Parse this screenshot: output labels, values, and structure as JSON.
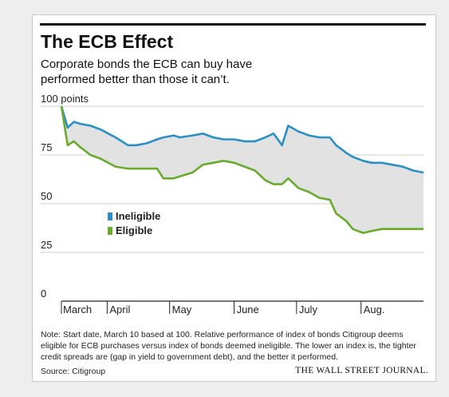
{
  "title": "The ECB Effect",
  "subtitle": "Corporate bonds the ECB can buy have performed better than those it can’t.",
  "note": "Note: Start date, March 10 based at 100. Relative performance of index of bonds Citigroup deems eligible for ECB purchases versus index of bonds deemed ineligible. The lower an index is, the tighter credit spreads are (gap in yield to government debt), and the better it performed.",
  "source": "Source: Citigroup",
  "brand": "THE WALL STREET JOURNAL.",
  "colors": {
    "ineligible": "#2a8fc4",
    "eligible": "#6aab2e",
    "gap_fill": "#e2e2e2",
    "grid": "#cfcfcf"
  },
  "chart_data": {
    "type": "line",
    "title": "The ECB Effect",
    "ylabel": "points",
    "y_ticks": [
      0,
      25,
      50,
      75,
      100
    ],
    "y_tick_labels": [
      "0",
      "25",
      "50",
      "75",
      "100 points"
    ],
    "ylim": [
      0,
      100
    ],
    "x_tick_labels": [
      "March",
      "April",
      "May",
      "June",
      "July",
      "Aug."
    ],
    "x_tick_dates": [
      "2016-03-10",
      "2016-04-01",
      "2016-05-01",
      "2016-06-01",
      "2016-07-01",
      "2016-08-01"
    ],
    "xlim": [
      "2016-03-10",
      "2016-08-31"
    ],
    "grid": true,
    "legend": "center-left",
    "shaded_gap_between_series": true,
    "x": [
      "2016-03-10",
      "2016-03-13",
      "2016-03-16",
      "2016-03-19",
      "2016-03-24",
      "2016-03-29",
      "2016-04-05",
      "2016-04-11",
      "2016-04-15",
      "2016-04-20",
      "2016-04-25",
      "2016-04-28",
      "2016-05-03",
      "2016-05-06",
      "2016-05-12",
      "2016-05-17",
      "2016-05-22",
      "2016-05-27",
      "2016-06-01",
      "2016-06-06",
      "2016-06-11",
      "2016-06-16",
      "2016-06-20",
      "2016-06-24",
      "2016-06-27",
      "2016-07-02",
      "2016-07-07",
      "2016-07-12",
      "2016-07-17",
      "2016-07-20",
      "2016-07-25",
      "2016-07-28",
      "2016-08-02",
      "2016-08-06",
      "2016-08-11",
      "2016-08-16",
      "2016-08-21",
      "2016-08-26",
      "2016-08-31"
    ],
    "series": [
      {
        "name": "Ineligible",
        "values": [
          100,
          89,
          92,
          91,
          90,
          88,
          84,
          80,
          80,
          81,
          83,
          84,
          85,
          84,
          85,
          86,
          84,
          83,
          83,
          82,
          82,
          84,
          86,
          80,
          90,
          87,
          85,
          84,
          84,
          80,
          76,
          74,
          72,
          71,
          71,
          70,
          69,
          67,
          66
        ]
      },
      {
        "name": "Eligible",
        "values": [
          100,
          80,
          82,
          79,
          75,
          73,
          69,
          68,
          68,
          68,
          68,
          63,
          63,
          64,
          66,
          70,
          71,
          72,
          71,
          69,
          67,
          62,
          60,
          60,
          63,
          58,
          56,
          53,
          52,
          45,
          41,
          37,
          35,
          36,
          37,
          37,
          37,
          37,
          37
        ]
      }
    ]
  }
}
